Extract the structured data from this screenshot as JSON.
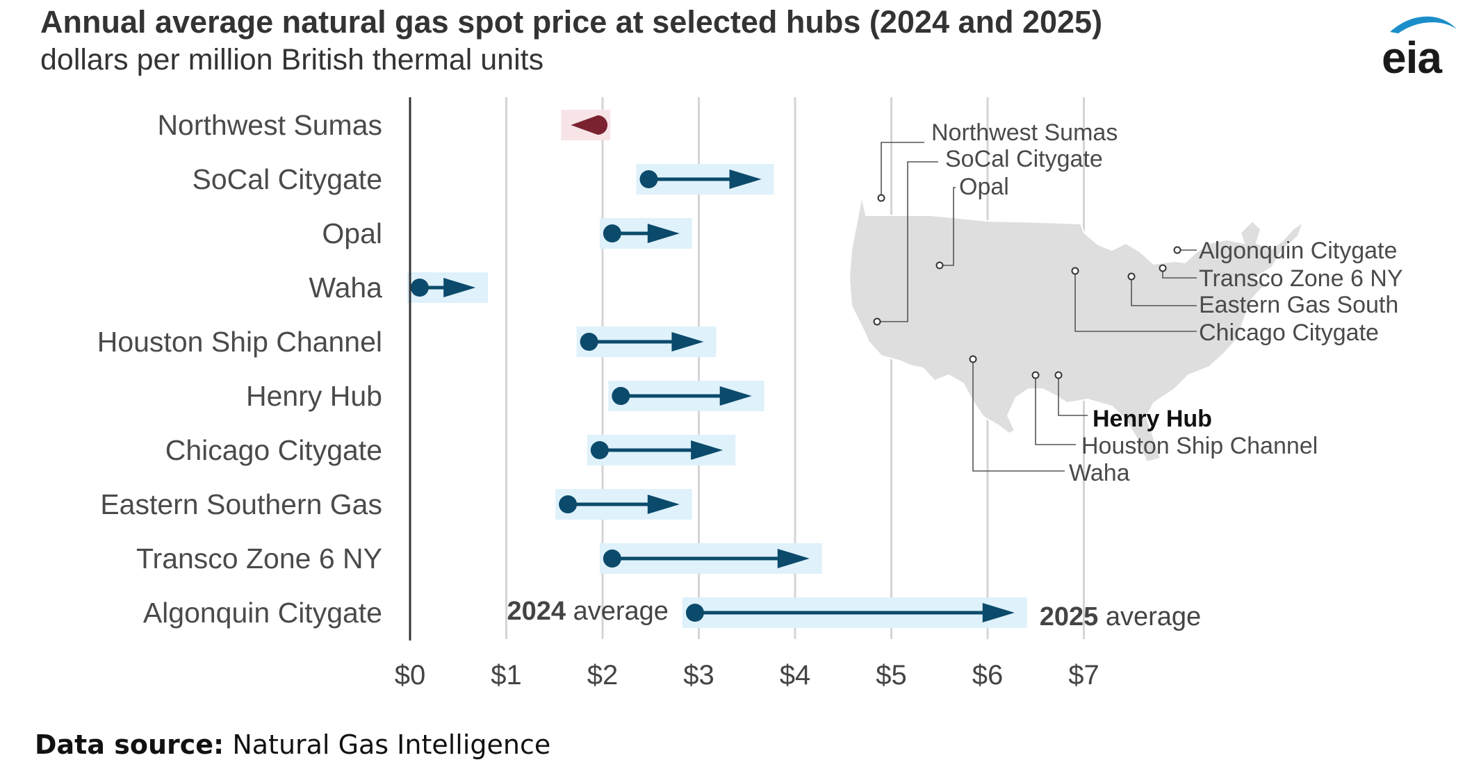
{
  "header": {
    "title": "Annual average natural gas spot price at selected hubs (2024 and 2025)",
    "subtitle": "dollars per million British thermal units",
    "logo_text": "eia"
  },
  "footer": {
    "source_label": "Data source:",
    "source_value": "Natural Gas Intelligence"
  },
  "colors": {
    "arrow": "#0b4a6b",
    "band": "#dff1fb",
    "decrease": "#7b2230",
    "decrease_band": "#f6e4e7",
    "grid": "#d4d4d4",
    "axis": "#333333",
    "map_fill": "#dedede"
  },
  "chart_data": {
    "type": "dot-arrow",
    "categories": [
      "Northwest Sumas",
      "SoCal Citygate",
      "Opal",
      "Waha",
      "Houston Ship Channel",
      "Henry Hub",
      "Chicago Citygate",
      "Eastern Southern Gas",
      "Transco Zone 6 NY",
      "Algonquin Citygate"
    ],
    "series": [
      {
        "name": "2024 average",
        "values": [
          1.95,
          2.48,
          2.1,
          0.1,
          1.86,
          2.19,
          1.97,
          1.64,
          2.1,
          2.96
        ]
      },
      {
        "name": "2025 average",
        "values": [
          1.7,
          3.65,
          2.8,
          0.68,
          3.05,
          3.55,
          3.25,
          2.8,
          4.15,
          6.28
        ]
      }
    ],
    "xlim": [
      0,
      7
    ],
    "x_ticks": [
      "$0",
      "$1",
      "$2",
      "$3",
      "$4",
      "$5",
      "$6",
      "$7"
    ],
    "grid": true,
    "annotations": {
      "start_bold": "2024",
      "start_rest": " average",
      "end_bold": "2025",
      "end_rest": " average"
    }
  },
  "map": {
    "labels": [
      "Northwest Sumas",
      "SoCal Citygate",
      "Opal",
      "Algonquin Citygate",
      "Transco Zone 6 NY",
      "Eastern Gas South",
      "Chicago Citygate",
      "Henry Hub",
      "Houston Ship Channel",
      "Waha"
    ]
  }
}
